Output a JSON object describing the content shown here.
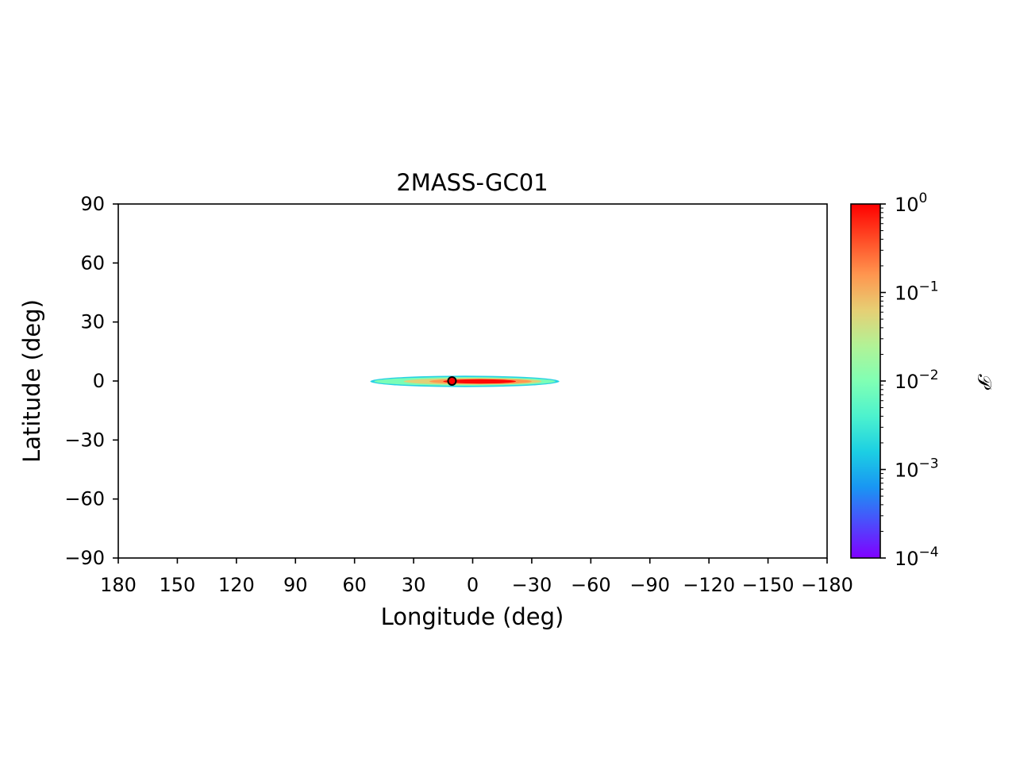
{
  "chart_data": {
    "type": "heatmap",
    "title": "2MASS-GC01",
    "xlabel": "Longitude (deg)",
    "ylabel": "Latitude (deg)",
    "xlim": [
      180,
      -180
    ],
    "ylim": [
      -90,
      90
    ],
    "x_ticks": [
      180,
      150,
      120,
      90,
      60,
      30,
      0,
      -30,
      -60,
      -90,
      -120,
      -150,
      -180
    ],
    "x_tick_labels": [
      "180",
      "150",
      "120",
      "90",
      "60",
      "30",
      "0",
      "−30",
      "−60",
      "−90",
      "−120",
      "−150",
      "−180"
    ],
    "y_ticks": [
      90,
      60,
      30,
      0,
      -30,
      -60,
      -90
    ],
    "y_tick_labels": [
      "90",
      "60",
      "30",
      "0",
      "−30",
      "−60",
      "−90"
    ],
    "grid": false,
    "colormap": "rainbow",
    "colorbar": {
      "label": "𝒫",
      "scale": "log",
      "range": [
        0.0001,
        1
      ],
      "ticks": [
        {
          "value": 1,
          "base": "10",
          "exp": "0"
        },
        {
          "value": 0.1,
          "base": "10",
          "exp": "−1"
        },
        {
          "value": 0.01,
          "base": "10",
          "exp": "−2"
        },
        {
          "value": 0.001,
          "base": "10",
          "exp": "−3"
        },
        {
          "value": 0.0001,
          "base": "10",
          "exp": "−4"
        }
      ],
      "colors": [
        "#8000ff",
        "#4c4cfc",
        "#1996f3",
        "#1ccfe3",
        "#4cf2ce",
        "#80ffb4",
        "#b2f296",
        "#e6cf74",
        "#ff964f",
        "#ff4c26",
        "#ff0000"
      ]
    },
    "probability_region": {
      "description_values_in_deg": true,
      "layers": [
        {
          "level": 0.002,
          "color": "#1ccfe3",
          "l_range": [
            52,
            -44
          ],
          "b_range": [
            -2.5,
            2.5
          ]
        },
        {
          "level": 0.02,
          "color": "#80ffb4",
          "l_range": [
            50,
            -42
          ],
          "b_range": [
            -1.8,
            1.8
          ]
        },
        {
          "level": 0.08,
          "color": "#e6cf74",
          "l_range": [
            35,
            -35
          ],
          "b_range": [
            -1.3,
            1.3
          ]
        },
        {
          "level": 0.3,
          "color": "#ff964f",
          "l_range": [
            22,
            -30
          ],
          "b_range": [
            -1.0,
            1.0
          ]
        },
        {
          "level": 0.8,
          "color": "#ff0000",
          "l_range": [
            15,
            -22
          ],
          "b_range": [
            -0.7,
            0.7
          ]
        }
      ]
    },
    "marker": {
      "l": 10.5,
      "b": 0.0,
      "fill": "#ff0000",
      "edge": "#000000"
    }
  }
}
